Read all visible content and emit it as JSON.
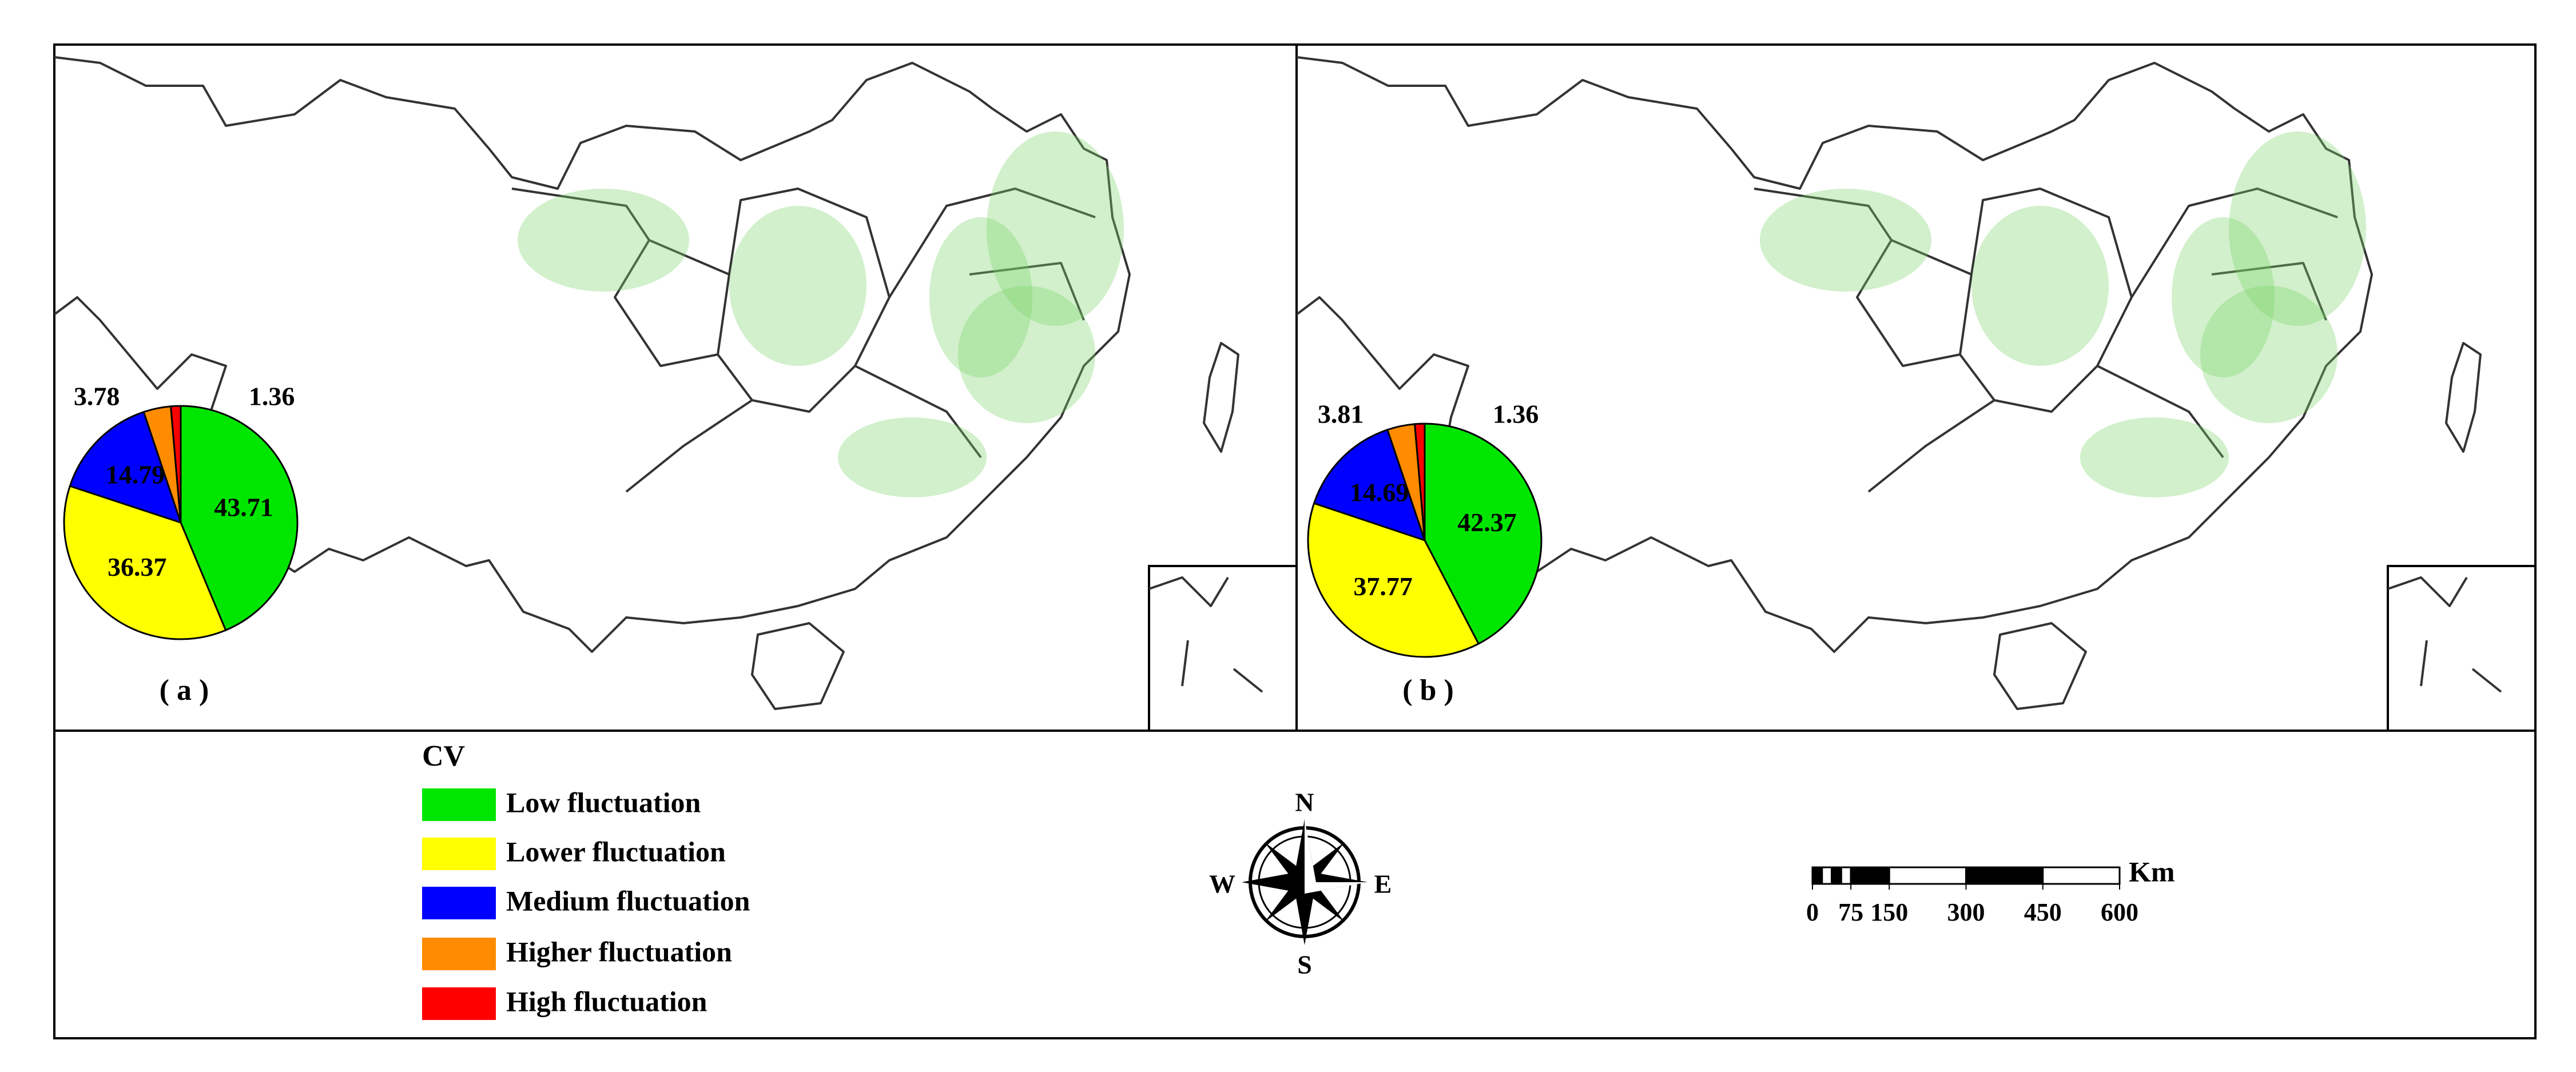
{
  "maps": [
    {
      "label": "( a )",
      "pie": {
        "type": "pie",
        "values": [
          43.71,
          36.37,
          14.79,
          3.78,
          1.36
        ]
      }
    },
    {
      "label": "( b )",
      "pie": {
        "type": "pie",
        "values": [
          42.37,
          37.77,
          14.69,
          3.81,
          1.36
        ]
      }
    }
  ],
  "legend": {
    "title": "CV",
    "items": [
      {
        "name": "Low fluctuation",
        "color": "#00e600"
      },
      {
        "name": "Lower fluctuation",
        "color": "#ffff00"
      },
      {
        "name": "Medium fluctuation",
        "color": "#0000ff"
      },
      {
        "name": "Higher fluctuation",
        "color": "#ff8c00"
      },
      {
        "name": "High fluctuation",
        "color": "#ff0000"
      }
    ]
  },
  "compass": {
    "north": "N",
    "east": "E",
    "south": "S",
    "west": "W"
  },
  "scale_bar": {
    "unit": "Km",
    "ticks": [
      0,
      75,
      150,
      300,
      450,
      600
    ]
  }
}
